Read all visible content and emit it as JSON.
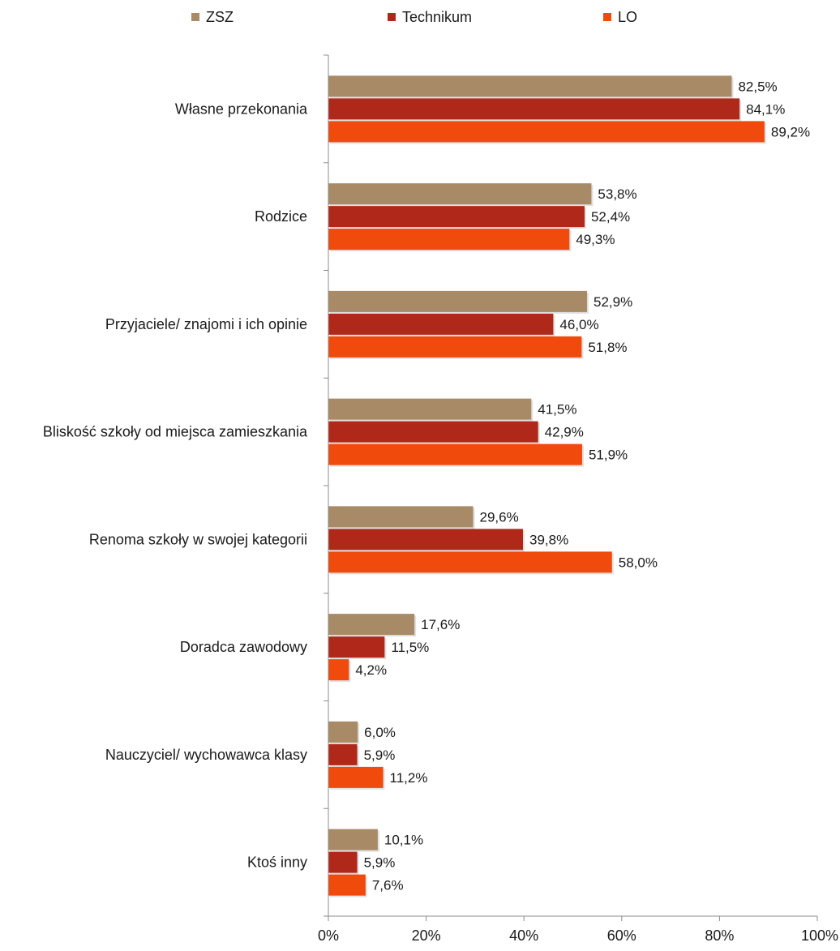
{
  "chart_data": {
    "type": "bar",
    "orientation": "horizontal",
    "categories": [
      "Własne przekonania",
      "Rodzice",
      "Przyjaciele/ znajomi i ich opinie",
      "Bliskość szkoły od miejsca zamieszkania",
      "Renoma szkoły w swojej kategorii",
      "Doradca zawodowy",
      "Nauczyciel/ wychowawca klasy",
      "Ktoś inny"
    ],
    "series": [
      {
        "name": "ZSZ",
        "color": "#a88a66",
        "values": [
          82.5,
          53.8,
          52.9,
          41.5,
          29.6,
          17.6,
          6.0,
          10.1
        ],
        "labels": [
          "82,5%",
          "53,8%",
          "52,9%",
          "41,5%",
          "29,6%",
          "17,6%",
          "6,0%",
          "10,1%"
        ]
      },
      {
        "name": "Technikum",
        "color": "#b0281a",
        "values": [
          84.1,
          52.4,
          46.0,
          42.9,
          39.8,
          11.5,
          5.9,
          5.9
        ],
        "labels": [
          "84,1%",
          "52,4%",
          "46,0%",
          "42,9%",
          "39,8%",
          "11,5%",
          "5,9%",
          "5,9%"
        ]
      },
      {
        "name": "LO",
        "color": "#f04a0c",
        "values": [
          89.2,
          49.3,
          51.8,
          51.9,
          58.0,
          4.2,
          11.2,
          7.6
        ],
        "labels": [
          "89,2%",
          "49,3%",
          "51,8%",
          "51,9%",
          "58,0%",
          "4,2%",
          "11,2%",
          "7,6%"
        ]
      }
    ],
    "xlim": [
      0,
      100
    ],
    "ticks": [
      0,
      20,
      40,
      60,
      80,
      100
    ],
    "tick_labels": [
      "0%",
      "20%",
      "40%",
      "60%",
      "80%",
      "100%"
    ],
    "legend_position": "top",
    "grid": false
  }
}
